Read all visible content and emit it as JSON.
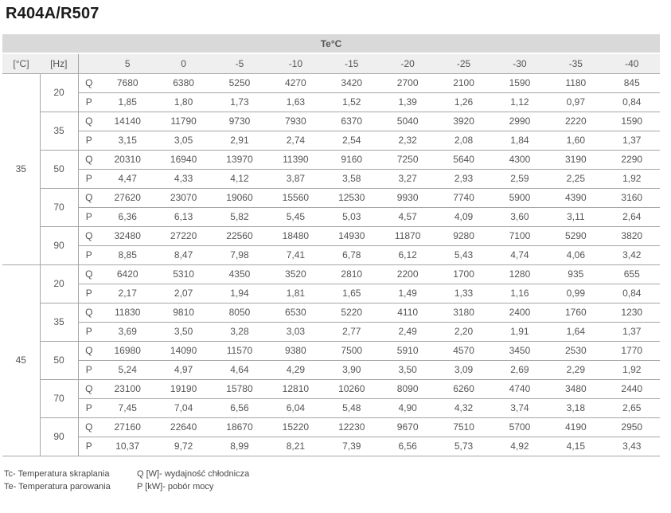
{
  "title": "R404A/R507",
  "table": {
    "band": "Te°C",
    "tc_unit": "[°C]",
    "hz_unit": "[Hz]",
    "temps": [
      "5",
      "0",
      "-5",
      "-10",
      "-15",
      "-20",
      "-25",
      "-30",
      "-35",
      "-40"
    ],
    "q_label": "Q",
    "p_label": "P",
    "blocks": [
      {
        "tc": "35",
        "rows": [
          {
            "hz": "20",
            "q": [
              7680,
              6380,
              5250,
              4270,
              3420,
              2700,
              2100,
              1590,
              1180,
              845
            ],
            "p": [
              "1,85",
              "1,80",
              "1,73",
              "1,63",
              "1,52",
              "1,39",
              "1,26",
              "1,12",
              "0,97",
              "0,84"
            ]
          },
          {
            "hz": "35",
            "q": [
              14140,
              11790,
              9730,
              7930,
              6370,
              5040,
              3920,
              2990,
              2220,
              1590
            ],
            "p": [
              "3,15",
              "3,05",
              "2,91",
              "2,74",
              "2,54",
              "2,32",
              "2,08",
              "1,84",
              "1,60",
              "1,37"
            ]
          },
          {
            "hz": "50",
            "q": [
              20310,
              16940,
              13970,
              11390,
              9160,
              7250,
              5640,
              4300,
              3190,
              2290
            ],
            "p": [
              "4,47",
              "4,33",
              "4,12",
              "3,87",
              "3,58",
              "3,27",
              "2,93",
              "2,59",
              "2,25",
              "1,92"
            ]
          },
          {
            "hz": "70",
            "q": [
              27620,
              23070,
              19060,
              15560,
              12530,
              9930,
              7740,
              5900,
              4390,
              3160
            ],
            "p": [
              "6,36",
              "6,13",
              "5,82",
              "5,45",
              "5,03",
              "4,57",
              "4,09",
              "3,60",
              "3,11",
              "2,64"
            ]
          },
          {
            "hz": "90",
            "q": [
              32480,
              27220,
              22560,
              18480,
              14930,
              11870,
              9280,
              7100,
              5290,
              3820
            ],
            "p": [
              "8,85",
              "8,47",
              "7,98",
              "7,41",
              "6,78",
              "6,12",
              "5,43",
              "4,74",
              "4,06",
              "3,42"
            ]
          }
        ]
      },
      {
        "tc": "45",
        "rows": [
          {
            "hz": "20",
            "q": [
              6420,
              5310,
              4350,
              3520,
              2810,
              2200,
              1700,
              1280,
              935,
              655
            ],
            "p": [
              "2,17",
              "2,07",
              "1,94",
              "1,81",
              "1,65",
              "1,49",
              "1,33",
              "1,16",
              "0,99",
              "0,84"
            ]
          },
          {
            "hz": "35",
            "q": [
              11830,
              9810,
              8050,
              6530,
              5220,
              4110,
              3180,
              2400,
              1760,
              1230
            ],
            "p": [
              "3,69",
              "3,50",
              "3,28",
              "3,03",
              "2,77",
              "2,49",
              "2,20",
              "1,91",
              "1,64",
              "1,37"
            ]
          },
          {
            "hz": "50",
            "q": [
              16980,
              14090,
              11570,
              9380,
              7500,
              5910,
              4570,
              3450,
              2530,
              1770
            ],
            "p": [
              "5,24",
              "4,97",
              "4,64",
              "4,29",
              "3,90",
              "3,50",
              "3,09",
              "2,69",
              "2,29",
              "1,92"
            ]
          },
          {
            "hz": "70",
            "q": [
              23100,
              19190,
              15780,
              12810,
              10260,
              8090,
              6260,
              4740,
              3480,
              2440
            ],
            "p": [
              "7,45",
              "7,04",
              "6,56",
              "6,04",
              "5,48",
              "4,90",
              "4,32",
              "3,74",
              "3,18",
              "2,65"
            ]
          },
          {
            "hz": "90",
            "q": [
              27160,
              22640,
              18670,
              15220,
              12230,
              9670,
              7510,
              5700,
              4190,
              2950
            ],
            "p": [
              "10,37",
              "9,72",
              "8,99",
              "8,21",
              "7,39",
              "6,56",
              "5,73",
              "4,92",
              "4,15",
              "3,43"
            ]
          }
        ]
      }
    ]
  },
  "footnotes": {
    "left": [
      "Tc- Temperatura skraplania",
      "Te- Temperatura parowania"
    ],
    "right": [
      "Q [W]- wydajność chłodnicza",
      "P [kW]- pobór mocy"
    ]
  }
}
